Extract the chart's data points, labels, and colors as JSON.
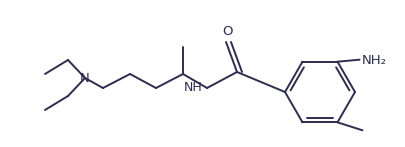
{
  "bg_color": "#ffffff",
  "line_color": "#2d2d4e",
  "text_color": "#2d2d4e",
  "label_NH": "NH",
  "label_N": "N",
  "label_O": "O",
  "label_NH2": "NH₂",
  "figsize": [
    4.06,
    1.47
  ],
  "dpi": 100,
  "lw": 1.4
}
